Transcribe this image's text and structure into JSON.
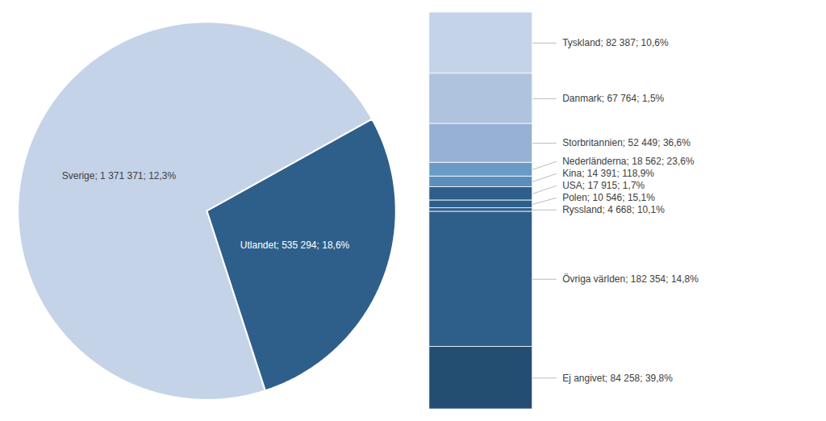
{
  "chart_data": [
    {
      "type": "pie",
      "categories": [
        "Sverige; 1 371 371; 12,3%",
        "Utlandet; 535 294; 18,6%"
      ],
      "values": [
        1371371,
        535294
      ],
      "colors": [
        "#c5d3e8",
        "#2e5f8a"
      ]
    },
    {
      "type": "bar",
      "stacked": true,
      "tick_labels": false,
      "ylim": [
        0,
        535294
      ],
      "series": [
        {
          "name": "Tyskland; 82 387; 10,6%",
          "color": "#c5d3e8",
          "values": [
            82387
          ]
        },
        {
          "name": "Danmark; 67 764; 1,5%",
          "color": "#afc3df",
          "values": [
            67764
          ]
        },
        {
          "name": "Storbritannien; 52 449; 36,6%",
          "color": "#96b1d4",
          "values": [
            52449
          ]
        },
        {
          "name": "Nederländerna; 18 562; 23,6%",
          "color": "#6a9bc4",
          "values": [
            18562
          ]
        },
        {
          "name": "Kina; 14 391; 118,9%",
          "color": "#5a8fbe",
          "values": [
            14391
          ]
        },
        {
          "name": "USA; 17 915; 1,7%",
          "color": "#2e5f8a",
          "values": [
            17915
          ]
        },
        {
          "name": "Polen; 10 546; 15,1%",
          "color": "#2e5f8a",
          "values": [
            10546
          ]
        },
        {
          "name": "Ryssland; 4 668; 10,1%",
          "color": "#2e5f8a",
          "values": [
            4668
          ]
        },
        {
          "name": "Övriga världen; 182 354; 14,8%",
          "color": "#2e5f8a",
          "values": [
            182354
          ]
        },
        {
          "name": "Ej angivet; 84 258; 39,8%",
          "color": "#244d72",
          "values": [
            84258
          ]
        }
      ]
    }
  ]
}
